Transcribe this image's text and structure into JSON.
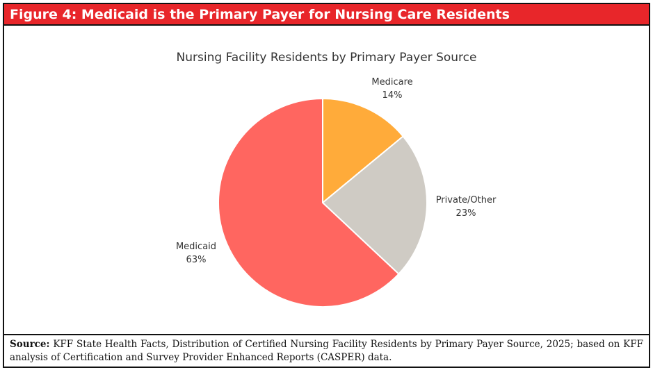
{
  "figure": {
    "header": "Figure 4: Medicaid is the Primary Payer for Nursing Care Residents",
    "source_label": "Source:",
    "source_text": "KFF State Health Facts, Distribution of Certified Nursing Facility Residents by Primary Payer Source, 2025; based on KFF analysis of Certification and Survey Provider Enhanced Reports (CASPER) data.",
    "colors": {
      "header_bg": "#e8262a",
      "header_text": "#ffffff"
    }
  },
  "chart_data": {
    "type": "pie",
    "title": "Nursing Facility Residents by Primary Payer Source",
    "slices": [
      {
        "name": "Medicare",
        "value": 14,
        "label": "14%",
        "color": "#ffab3a"
      },
      {
        "name": "Private/Other",
        "value": 23,
        "label": "23%",
        "color": "#cfcbc4"
      },
      {
        "name": "Medicaid",
        "value": 63,
        "label": "63%",
        "color": "#ff6660"
      }
    ],
    "start": "12 o'clock",
    "direction": "clockwise",
    "legend": "none"
  }
}
